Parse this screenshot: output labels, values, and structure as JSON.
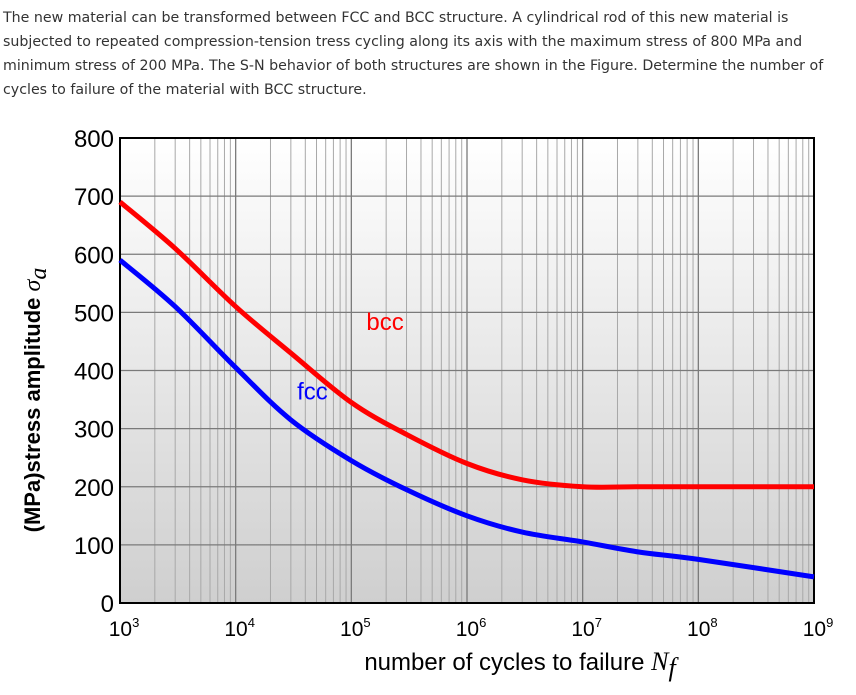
{
  "question": {
    "text": "The new material can be transformed between FCC and BCC structure. A cylindrical rod of this new material is subjected to repeated compression-tension tress cycling along its axis with the maximum stress of 800 MPa and minimum stress of 200 MPa. The S-N behavior of both structures are shown in the Figure. Determine the number of cycles to failure of the material with BCC structure."
  },
  "chart_data": {
    "type": "line",
    "xscale": "log",
    "xlim": [
      1000,
      1000000000
    ],
    "ylim": [
      0,
      800
    ],
    "grid": true,
    "ylabel": {
      "prefix": "(MPa)stress amplitude ",
      "symbol": "σ",
      "subscript": "a"
    },
    "xlabel": {
      "prefix": "number of cycles to failure ",
      "symbol": "N",
      "subscript": "f"
    },
    "x_ticks": [
      {
        "base": "10",
        "exp": "3",
        "value": 1000
      },
      {
        "base": "10",
        "exp": "4",
        "value": 10000
      },
      {
        "base": "10",
        "exp": "5",
        "value": 100000
      },
      {
        "base": "10",
        "exp": "6",
        "value": 1000000
      },
      {
        "base": "10",
        "exp": "7",
        "value": 10000000
      },
      {
        "base": "10",
        "exp": "8",
        "value": 100000000
      },
      {
        "base": "10",
        "exp": "9",
        "value": 1000000000
      }
    ],
    "y_ticks": [
      "0",
      "100",
      "200",
      "300",
      "400",
      "500",
      "600",
      "700",
      "800"
    ],
    "series": [
      {
        "name": "bcc",
        "color": "#ff0000",
        "x": [
          1000,
          3000,
          10000,
          30000,
          100000,
          300000,
          1000000,
          3000000,
          10000000,
          30000000,
          100000000,
          1000000000
        ],
        "y": [
          690,
          610,
          510,
          430,
          345,
          290,
          240,
          212,
          200,
          200,
          200,
          200
        ]
      },
      {
        "name": "fcc",
        "color": "#0000ff",
        "x": [
          1000,
          3000,
          10000,
          30000,
          100000,
          300000,
          1000000,
          3000000,
          10000000,
          30000000,
          100000000,
          1000000000
        ],
        "y": [
          590,
          510,
          405,
          315,
          245,
          195,
          150,
          122,
          105,
          88,
          75,
          45
        ]
      }
    ]
  }
}
